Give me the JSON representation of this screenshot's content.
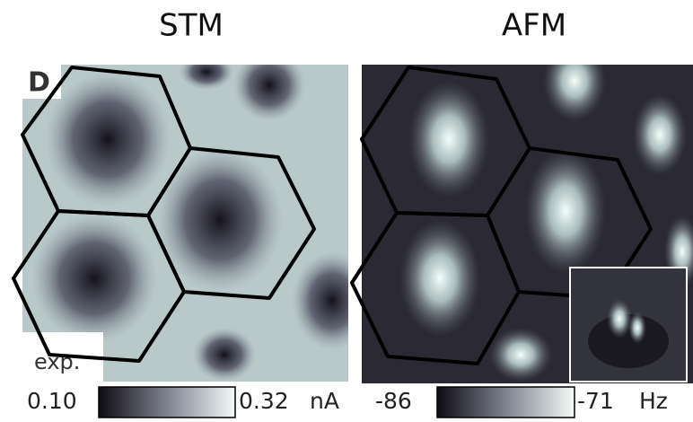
{
  "panels": [
    {
      "title": "STM",
      "label": "D",
      "note": "exp.",
      "colorbar": {
        "min": "0.10",
        "max": "0.32",
        "unit": "nA"
      }
    },
    {
      "title": "AFM",
      "colorbar": {
        "min": "-86",
        "max": "-71",
        "unit": "Hz"
      }
    }
  ]
}
